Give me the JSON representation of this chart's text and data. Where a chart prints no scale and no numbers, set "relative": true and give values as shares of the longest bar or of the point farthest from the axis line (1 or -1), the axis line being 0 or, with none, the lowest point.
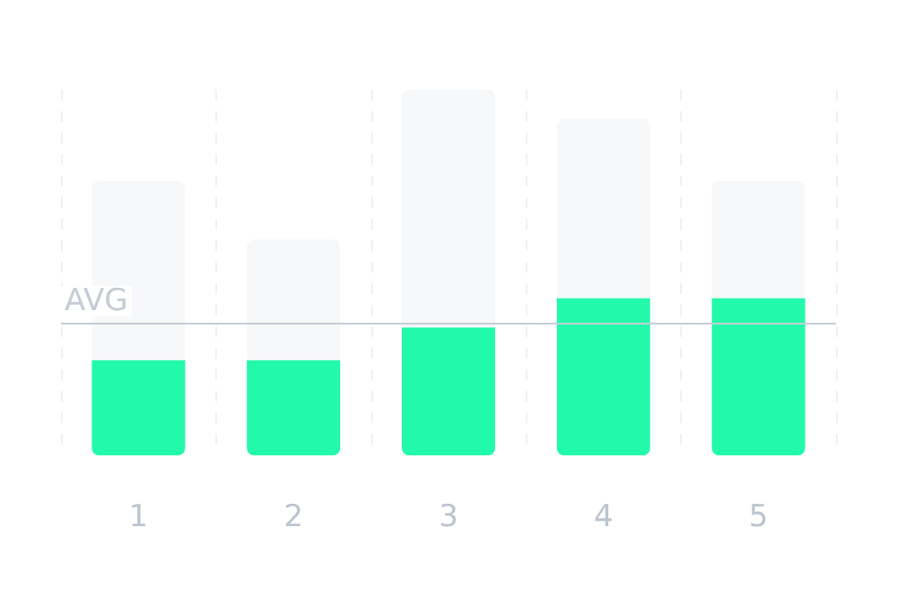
{
  "chart_data": {
    "type": "bar",
    "relative": true,
    "stacked": true,
    "categories": [
      "1",
      "2",
      "3",
      "4",
      "5"
    ],
    "series": [
      {
        "color": "#22f9aa",
        "values": [
          0.26,
          0.26,
          0.35,
          0.43,
          0.43
        ]
      },
      {
        "color": "#f6f8fa",
        "values": [
          0.49,
          0.33,
          0.65,
          0.49,
          0.32
        ]
      }
    ],
    "ref_lines": [
      {
        "axis": "y",
        "value": 0.36,
        "label": "AVG",
        "color": "#c5ccd6"
      }
    ],
    "grid": "x"
  }
}
